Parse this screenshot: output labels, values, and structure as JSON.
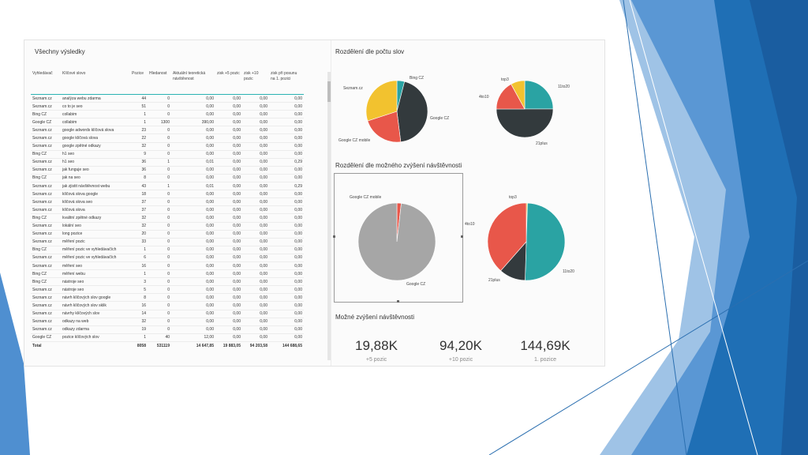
{
  "table": {
    "title": "Všechny výsledky",
    "columns": [
      "Vyhledávač",
      "Klíčové slovo",
      "Pozice",
      "Hledanost",
      "Aktuální teoretická návštěvnost",
      "zisk +5 pozic",
      "zisk +10 pozic",
      "zisk při posunu na 1. pozici"
    ],
    "rows": [
      [
        "Seznam.cz",
        "analýza webu zdarma",
        "44",
        "0",
        "0,00",
        "0,00",
        "0,00",
        "0,00"
      ],
      [
        "Seznam.cz",
        "co to je seo",
        "51",
        "0",
        "0,00",
        "0,00",
        "0,00",
        "0,00"
      ],
      [
        "Bing CZ",
        "collabim",
        "1",
        "0",
        "0,00",
        "0,00",
        "0,00",
        "0,00"
      ],
      [
        "Google CZ",
        "collabim",
        "1",
        "1300",
        "390,00",
        "0,00",
        "0,00",
        "0,00"
      ],
      [
        "Seznam.cz",
        "google adwords klíčová slova",
        "23",
        "0",
        "0,00",
        "0,00",
        "0,00",
        "0,00"
      ],
      [
        "Seznam.cz",
        "google klíčová slova",
        "22",
        "0",
        "0,00",
        "0,00",
        "0,00",
        "0,00"
      ],
      [
        "Seznam.cz",
        "google zpětné odkazy",
        "32",
        "0",
        "0,00",
        "0,00",
        "0,00",
        "0,00"
      ],
      [
        "Bing CZ",
        "h1 seo",
        "9",
        "0",
        "0,00",
        "0,00",
        "0,00",
        "0,00"
      ],
      [
        "Seznam.cz",
        "h1 seo",
        "36",
        "1",
        "0,01",
        "0,00",
        "0,00",
        "0,29"
      ],
      [
        "Seznam.cz",
        "jak funguje seo",
        "36",
        "0",
        "0,00",
        "0,00",
        "0,00",
        "0,00"
      ],
      [
        "Bing CZ",
        "jak na seo",
        "8",
        "0",
        "0,00",
        "0,00",
        "0,00",
        "0,00"
      ],
      [
        "Seznam.cz",
        "jak zjistit návštěvnost webu",
        "43",
        "1",
        "0,01",
        "0,00",
        "0,00",
        "0,29"
      ],
      [
        "Seznam.cz",
        "klíčová slova google",
        "18",
        "0",
        "0,00",
        "0,00",
        "0,00",
        "0,00"
      ],
      [
        "Seznam.cz",
        "klíčová slova seo",
        "37",
        "0",
        "0,00",
        "0,00",
        "0,00",
        "0,00"
      ],
      [
        "Seznam.cz",
        "klíčová slova",
        "37",
        "0",
        "0,00",
        "0,00",
        "0,00",
        "0,00"
      ],
      [
        "Bing CZ",
        "kvalitní zpětné odkazy",
        "32",
        "0",
        "0,00",
        "0,00",
        "0,00",
        "0,00"
      ],
      [
        "Seznam.cz",
        "lokální seo",
        "32",
        "0",
        "0,00",
        "0,00",
        "0,00",
        "0,00"
      ],
      [
        "Seznam.cz",
        "long pozice",
        "20",
        "0",
        "0,00",
        "0,00",
        "0,00",
        "0,00"
      ],
      [
        "Seznam.cz",
        "měření pozic",
        "33",
        "0",
        "0,00",
        "0,00",
        "0,00",
        "0,00"
      ],
      [
        "Bing CZ",
        "měření pozic ve vyhledávačích",
        "1",
        "0",
        "0,00",
        "0,00",
        "0,00",
        "0,00"
      ],
      [
        "Seznam.cz",
        "měření pozic ve vyhledávačích",
        "6",
        "0",
        "0,00",
        "0,00",
        "0,00",
        "0,00"
      ],
      [
        "Seznam.cz",
        "měření seo",
        "16",
        "0",
        "0,00",
        "0,00",
        "0,00",
        "0,00"
      ],
      [
        "Bing CZ",
        "měření webu",
        "1",
        "0",
        "0,00",
        "0,00",
        "0,00",
        "0,00"
      ],
      [
        "Bing CZ",
        "nástroje seo",
        "3",
        "0",
        "0,00",
        "0,00",
        "0,00",
        "0,00"
      ],
      [
        "Seznam.cz",
        "nástroje seo",
        "5",
        "0",
        "0,00",
        "0,00",
        "0,00",
        "0,00"
      ],
      [
        "Seznam.cz",
        "návrh klíčových slov google",
        "8",
        "0",
        "0,00",
        "0,00",
        "0,00",
        "0,00"
      ],
      [
        "Seznam.cz",
        "návrh klíčových slov sklik",
        "16",
        "0",
        "0,00",
        "0,00",
        "0,00",
        "0,00"
      ],
      [
        "Seznam.cz",
        "návrhy klíčových slov",
        "14",
        "0",
        "0,00",
        "0,00",
        "0,00",
        "0,00"
      ],
      [
        "Seznam.cz",
        "odkazy na web",
        "32",
        "0",
        "0,00",
        "0,00",
        "0,00",
        "0,00"
      ],
      [
        "Seznam.cz",
        "odkazy zdarma",
        "19",
        "0",
        "0,00",
        "0,00",
        "0,00",
        "0,00"
      ],
      [
        "Google CZ",
        "pozice klíčových slov",
        "1",
        "40",
        "12,00",
        "0,00",
        "0,00",
        "0,00"
      ]
    ],
    "total": [
      "Total",
      "",
      "8058",
      "531119",
      "14 647,85",
      "19 883,05",
      "94 203,58",
      "144 688,65"
    ]
  },
  "pies": {
    "title_words": "Rozdělení dle počtu slov",
    "title_visits": "Rozdělení dle možného zvýšení návštěvnosti",
    "engine_words": [
      {
        "label": "Bing CZ",
        "value": 4,
        "color": "#2aa3a3"
      },
      {
        "label": "Google CZ",
        "value": 44,
        "color": "#333a3d"
      },
      {
        "label": "Google CZ mobile",
        "value": 22,
        "color": "#e8574a"
      },
      {
        "label": "Seznam.cz",
        "value": 30,
        "color": "#f2c22f"
      }
    ],
    "range_words": [
      {
        "label": "11to20",
        "value": 25,
        "color": "#2aa3a3"
      },
      {
        "label": "21plus",
        "value": 50,
        "color": "#333a3d"
      },
      {
        "label": "4to10",
        "value": 17,
        "color": "#e8574a"
      },
      {
        "label": "top3",
        "value": 8,
        "color": "#f2c22f"
      }
    ],
    "engine_visits": [
      {
        "label": "Google CZ mobile",
        "value": 1.8,
        "color": "#e8574a"
      },
      {
        "label": "Google CZ",
        "value": 98.2,
        "color": "#a6a6a6"
      }
    ],
    "range_visits": [
      {
        "label": "top3",
        "value": 0.5,
        "color": "#f2c22f"
      },
      {
        "label": "11to20",
        "value": 50,
        "color": "#2aa3a3"
      },
      {
        "label": "21plus",
        "value": 11,
        "color": "#333a3d"
      },
      {
        "label": "4to10",
        "value": 38.5,
        "color": "#e8574a"
      }
    ]
  },
  "kpi": {
    "title": "Možné zvýšení návštěvnosti",
    "items": [
      {
        "value": "19,88K",
        "label": "+5 pozic"
      },
      {
        "value": "94,20K",
        "label": "+10 pozic"
      },
      {
        "value": "144,69K",
        "label": "1. pozice"
      }
    ]
  },
  "colors": {
    "teal": "#2aa3a3",
    "dark": "#333a3d",
    "red": "#e8574a",
    "yellow": "#f2c22f",
    "grey": "#a6a6a6",
    "slide_blue": "#2f7fc1"
  }
}
